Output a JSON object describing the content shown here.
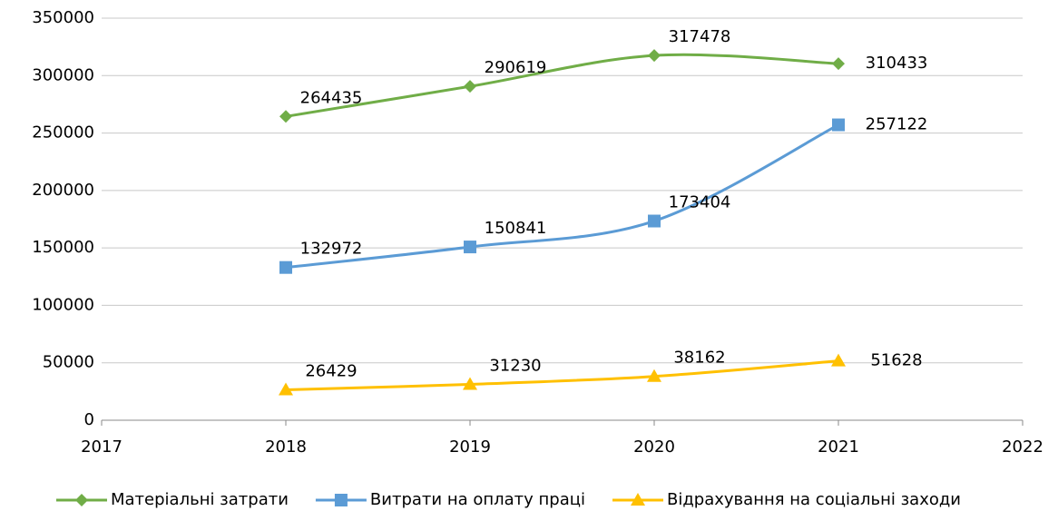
{
  "chart_data": {
    "type": "line",
    "x": [
      2018,
      2019,
      2020,
      2021
    ],
    "series": [
      {
        "name": "Матеріальні затрати",
        "color": "#70ad47",
        "marker": "diamond",
        "values": [
          264435,
          290619,
          317478,
          310433
        ]
      },
      {
        "name": "Витрати на оплату праці",
        "color": "#5b9bd5",
        "marker": "square",
        "values": [
          132972,
          150841,
          173404,
          257122
        ]
      },
      {
        "name": "Відрахування на соціальні заходи",
        "color": "#ffc000",
        "marker": "triangle",
        "values": [
          26429,
          31230,
          38162,
          51628
        ]
      }
    ],
    "xlim": [
      2017,
      2022
    ],
    "xticks": [
      2017,
      2018,
      2019,
      2020,
      2021,
      2022
    ],
    "ylim": [
      0,
      350000
    ],
    "yticks": [
      0,
      50000,
      100000,
      150000,
      200000,
      250000,
      300000,
      350000
    ],
    "grid": true,
    "smooth": true,
    "legend": "bottom",
    "data_labels": true
  }
}
